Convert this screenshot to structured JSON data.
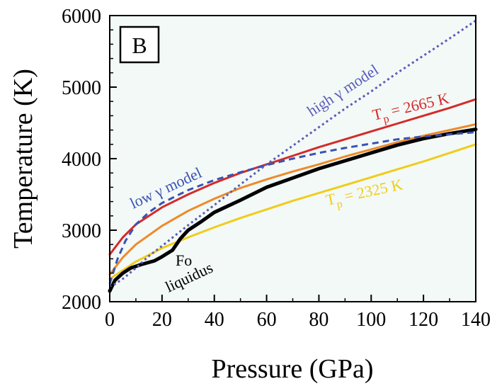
{
  "chart_data": {
    "type": "line",
    "panel_label": "B",
    "xlabel": "Pressure (GPa)",
    "ylabel": "Temperature (K)",
    "xlim": [
      0,
      140
    ],
    "ylim": [
      2000,
      6000
    ],
    "x_ticks": [
      0,
      20,
      40,
      60,
      80,
      100,
      120,
      140
    ],
    "y_ticks": [
      2000,
      3000,
      4000,
      5000,
      6000
    ],
    "grid": false,
    "plot_background": "#f3f9f6",
    "series": [
      {
        "label_key": "tp_high",
        "color": "#d42a2a",
        "dash": "solid",
        "x": [
          0,
          5,
          10,
          20,
          30,
          40,
          50,
          60,
          70,
          80,
          90,
          100,
          110,
          120,
          130,
          140
        ],
        "y": [
          2660,
          2900,
          3080,
          3320,
          3500,
          3660,
          3800,
          3920,
          4040,
          4160,
          4270,
          4380,
          4490,
          4600,
          4710,
          4830
        ]
      },
      {
        "label_key": "tp_low",
        "color": "#f0cc1a",
        "dash": "solid",
        "x": [
          0,
          5,
          10,
          20,
          30,
          40,
          50,
          60,
          70,
          80,
          90,
          100,
          110,
          120,
          130,
          140
        ],
        "y": [
          2320,
          2440,
          2560,
          2750,
          2900,
          3040,
          3170,
          3290,
          3410,
          3520,
          3630,
          3740,
          3850,
          3960,
          4080,
          4200
        ]
      },
      {
        "name": "",
        "color": "#ee8a2a",
        "dash": "solid",
        "x": [
          0,
          5,
          10,
          20,
          30,
          40,
          50,
          60,
          70,
          80,
          90,
          100,
          110,
          120,
          130,
          140
        ],
        "y": [
          2380,
          2620,
          2800,
          3060,
          3270,
          3440,
          3590,
          3710,
          3820,
          3920,
          4030,
          4130,
          4230,
          4320,
          4400,
          4480
        ]
      },
      {
        "label_key": "fo_liquidus",
        "color": "#000000",
        "dash": "solid",
        "x": [
          0,
          2,
          5,
          8,
          12,
          17,
          20,
          24,
          27,
          30,
          35,
          40,
          50,
          60,
          70,
          80,
          90,
          100,
          110,
          120,
          130,
          140
        ],
        "y": [
          2150,
          2300,
          2400,
          2470,
          2520,
          2570,
          2630,
          2720,
          2880,
          3000,
          3120,
          3250,
          3420,
          3600,
          3730,
          3860,
          3970,
          4080,
          4190,
          4280,
          4350,
          4410
        ]
      },
      {
        "label_key": "low_gamma",
        "color": "#3a52b4",
        "dash": "dashed",
        "x": [
          0,
          3,
          6,
          10,
          15,
          20,
          30,
          40,
          50,
          60,
          70,
          80,
          90,
          100,
          110,
          120,
          130,
          140
        ],
        "y": [
          2250,
          2600,
          2850,
          3080,
          3250,
          3380,
          3560,
          3700,
          3810,
          3910,
          4000,
          4080,
          4150,
          4210,
          4270,
          4310,
          4340,
          4370
        ]
      },
      {
        "label_key": "high_gamma",
        "color": "#5b5bb8",
        "dash": "dotted",
        "x": [
          0,
          5,
          10,
          15,
          20,
          30,
          40,
          50,
          60,
          70,
          80,
          90,
          100,
          110,
          120,
          130,
          140
        ],
        "y": [
          2200,
          2320,
          2470,
          2640,
          2780,
          3070,
          3350,
          3640,
          3920,
          4180,
          4440,
          4700,
          4940,
          5200,
          5440,
          5680,
          5930
        ]
      }
    ],
    "annotations": {
      "tp_high": {
        "main": "T",
        "sub": "p",
        "rest": " = 2665 K",
        "color": "#d42a2a"
      },
      "tp_low": {
        "main": "T",
        "sub": "p",
        "rest": " = 2325 K",
        "color": "#f0cc1a"
      },
      "high_gamma": {
        "text": "high γ model",
        "color": "#5b5bb8"
      },
      "low_gamma": {
        "text": "low γ model",
        "color": "#3a52b4"
      },
      "fo_line1": {
        "text": "Fo",
        "color": "#000000"
      },
      "fo_line2": {
        "text": "liquidus",
        "color": "#000000"
      }
    }
  }
}
